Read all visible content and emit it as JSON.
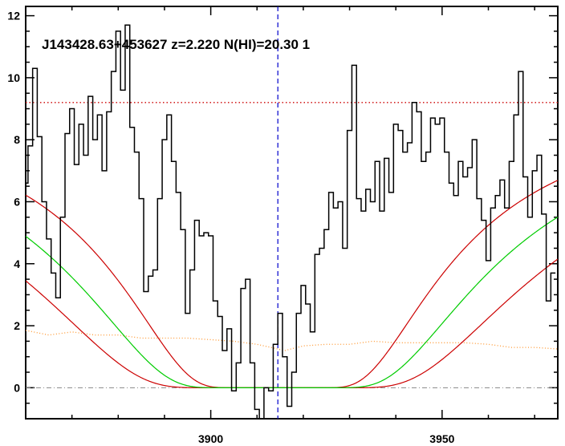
{
  "chart_data": {
    "type": "line",
    "title": "J143428.63+453627 z=2.220 N(HI)=20.30 1",
    "xlim": [
      3860,
      3975
    ],
    "ylim": [
      -1,
      12.3
    ],
    "x_ticks": [
      3900,
      3950
    ],
    "y_ticks": [
      0,
      2,
      4,
      6,
      8,
      10,
      12
    ],
    "grid": false,
    "colors": {
      "spectrum": "#000000",
      "error": "#ff9933",
      "model": "#00cc00",
      "model_bounds": "#cc0000",
      "continuum": "#cc0000",
      "line_center": "#0000cc",
      "zero_line": "#888888"
    },
    "continuum_level": 9.2,
    "line_center": 3914.5,
    "zero_level": 0,
    "series": [
      {
        "style": "step",
        "x": [
          3860,
          3861,
          3862,
          3863,
          3864,
          3865,
          3866,
          3867,
          3868,
          3869,
          3870,
          3871,
          3872,
          3873,
          3874,
          3875,
          3876,
          3877,
          3878,
          3879,
          3880,
          3881,
          3882,
          3883,
          3884,
          3885,
          3886,
          3887,
          3888,
          3889,
          3890,
          3891,
          3892,
          3893,
          3894,
          3895,
          3896,
          3897,
          3898,
          3899,
          3900,
          3901,
          3902,
          3903,
          3904,
          3905,
          3906,
          3907,
          3908,
          3909,
          3910,
          3911,
          3912,
          3913,
          3914,
          3915,
          3916,
          3917,
          3918,
          3919,
          3920,
          3921,
          3922,
          3923,
          3924,
          3925,
          3926,
          3927,
          3928,
          3929,
          3930,
          3931,
          3932,
          3933,
          3934,
          3935,
          3936,
          3937,
          3938,
          3939,
          3940,
          3941,
          3942,
          3943,
          3944,
          3945,
          3946,
          3947,
          3948,
          3949,
          3950,
          3951,
          3952,
          3953,
          3954,
          3955,
          3956,
          3957,
          3958,
          3959,
          3960,
          3961,
          3962,
          3963,
          3964,
          3965,
          3966,
          3967,
          3968,
          3969,
          3970,
          3971,
          3972,
          3973,
          3974
        ],
        "y": [
          6.6,
          7.8,
          10.3,
          8.1,
          6.0,
          4.8,
          3.7,
          2.9,
          5.5,
          8.2,
          9.0,
          7.2,
          8.5,
          7.5,
          9.4,
          8.0,
          8.8,
          7.0,
          8.9,
          10.2,
          11.5,
          9.6,
          11.7,
          8.4,
          7.6,
          6.1,
          3.1,
          3.6,
          3.8,
          6.1,
          8.0,
          8.8,
          7.3,
          6.3,
          5.1,
          2.4,
          3.8,
          5.4,
          4.9,
          5.0,
          4.9,
          2.8,
          2.3,
          1.2,
          1.9,
          -0.1,
          0.8,
          3.2,
          3.5,
          0.8,
          -0.7,
          -1.0,
          0.0,
          -0.1,
          1.4,
          2.4,
          1.0,
          -0.6,
          0.5,
          2.4,
          3.3,
          2.7,
          1.8,
          4.3,
          4.5,
          5.1,
          6.3,
          5.8,
          6.0,
          4.5,
          8.3,
          10.4,
          6.1,
          5.7,
          6.4,
          6.0,
          7.3,
          5.7,
          7.4,
          6.3,
          8.5,
          8.3,
          7.6,
          7.9,
          9.2,
          8.9,
          7.3,
          7.6,
          8.7,
          8.5,
          8.7,
          7.6,
          6.6,
          6.2,
          7.3,
          6.8,
          7.1,
          8.0,
          6.1,
          5.4,
          4.1,
          5.8,
          6.2,
          6.7,
          5.8,
          7.3,
          8.8,
          10.2,
          6.8,
          5.5,
          7.0,
          7.5,
          5.6,
          2.8,
          3.7
        ]
      },
      {
        "style": "dotted",
        "x": [
          3860,
          3865,
          3870,
          3875,
          3880,
          3885,
          3890,
          3895,
          3900,
          3905,
          3910,
          3913,
          3916,
          3920,
          3925,
          3930,
          3935,
          3940,
          3945,
          3950,
          3955,
          3960,
          3965,
          3970,
          3975
        ],
        "y": [
          1.85,
          1.7,
          1.8,
          1.7,
          1.7,
          1.6,
          1.6,
          1.6,
          1.55,
          1.5,
          1.4,
          1.3,
          1.2,
          1.35,
          1.4,
          1.4,
          1.5,
          1.45,
          1.45,
          1.45,
          1.45,
          1.4,
          1.3,
          1.3,
          1.25
        ]
      }
    ]
  }
}
